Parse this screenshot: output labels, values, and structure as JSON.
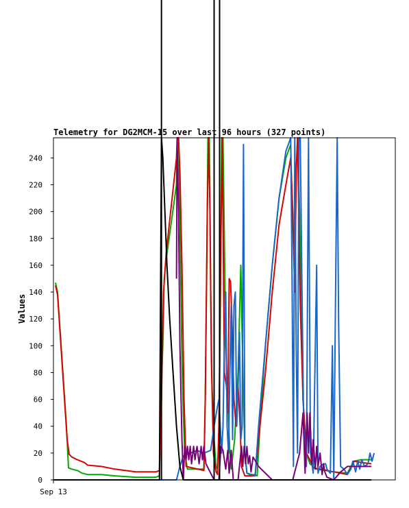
{
  "chart_data": {
    "type": "line",
    "title": "Telemetry for DG2MCM-15 over last 96 hours (327 points)",
    "xlabel": "",
    "ylabel": "Values",
    "x_tick_labels": [
      {
        "label": "Sep 13",
        "t": 0
      }
    ],
    "x_range": [
      0,
      1000
    ],
    "ylim": [
      0,
      255
    ],
    "y_ticks": [
      0,
      20,
      40,
      60,
      80,
      100,
      120,
      140,
      160,
      180,
      200,
      220,
      240
    ],
    "grid": false,
    "legend": "none",
    "series": [
      {
        "color": "#00aa00",
        "points": [
          [
            6,
            147
          ],
          [
            12,
            140
          ],
          [
            38,
            40
          ],
          [
            44,
            9
          ],
          [
            54,
            8
          ],
          [
            70,
            7
          ],
          [
            84,
            5
          ],
          [
            100,
            4
          ],
          [
            140,
            4
          ],
          [
            180,
            3
          ],
          [
            240,
            2
          ],
          [
            300,
            2
          ],
          [
            310,
            3
          ],
          [
            316,
            75
          ],
          [
            320,
            100
          ],
          [
            324,
            150
          ],
          [
            330,
            165
          ],
          [
            360,
            220
          ],
          [
            362,
            255
          ],
          [
            366,
            255
          ],
          [
            368,
            230
          ],
          [
            372,
            160
          ],
          [
            376,
            90
          ],
          [
            380,
            50
          ],
          [
            384,
            20
          ],
          [
            392,
            8
          ],
          [
            440,
            8
          ],
          [
            444,
            60
          ],
          [
            448,
            150
          ],
          [
            452,
            255
          ],
          [
            456,
            255
          ],
          [
            460,
            140
          ],
          [
            464,
            70
          ],
          [
            470,
            30
          ],
          [
            476,
            10
          ],
          [
            480,
            8
          ],
          [
            484,
            30
          ],
          [
            488,
            120
          ],
          [
            492,
            255
          ],
          [
            496,
            255
          ],
          [
            500,
            180
          ],
          [
            504,
            100
          ],
          [
            510,
            60
          ],
          [
            516,
            20
          ],
          [
            520,
            8
          ],
          [
            530,
            30
          ],
          [
            540,
            80
          ],
          [
            546,
            140
          ],
          [
            548,
            160
          ],
          [
            552,
            110
          ],
          [
            556,
            60
          ],
          [
            560,
            20
          ],
          [
            566,
            5
          ],
          [
            574,
            4
          ],
          [
            590,
            4
          ],
          [
            596,
            3
          ],
          [
            604,
            40
          ],
          [
            620,
            100
          ],
          [
            640,
            160
          ],
          [
            660,
            210
          ],
          [
            680,
            240
          ],
          [
            694,
            250
          ],
          [
            700,
            190
          ],
          [
            706,
            140
          ],
          [
            710,
            230
          ],
          [
            714,
            255
          ],
          [
            720,
            200
          ],
          [
            730,
            60
          ],
          [
            740,
            20
          ],
          [
            750,
            12
          ],
          [
            770,
            8
          ],
          [
            820,
            6
          ],
          [
            860,
            5
          ],
          [
            870,
            10
          ],
          [
            880,
            14
          ],
          [
            900,
            15
          ],
          [
            930,
            15
          ]
        ]
      },
      {
        "color": "#dd0000",
        "points": [
          [
            6,
            145
          ],
          [
            12,
            138
          ],
          [
            40,
            30
          ],
          [
            46,
            19
          ],
          [
            54,
            17
          ],
          [
            70,
            15
          ],
          [
            90,
            13
          ],
          [
            100,
            11
          ],
          [
            140,
            10
          ],
          [
            180,
            8
          ],
          [
            240,
            6
          ],
          [
            300,
            6
          ],
          [
            310,
            7
          ],
          [
            316,
            60
          ],
          [
            322,
            140
          ],
          [
            330,
            170
          ],
          [
            360,
            240
          ],
          [
            362,
            255
          ],
          [
            366,
            255
          ],
          [
            370,
            230
          ],
          [
            376,
            160
          ],
          [
            382,
            60
          ],
          [
            388,
            10
          ],
          [
            440,
            7
          ],
          [
            444,
            60
          ],
          [
            450,
            200
          ],
          [
            454,
            255
          ],
          [
            458,
            200
          ],
          [
            462,
            90
          ],
          [
            468,
            20
          ],
          [
            476,
            6
          ],
          [
            480,
            4
          ],
          [
            484,
            40
          ],
          [
            490,
            180
          ],
          [
            494,
            255
          ],
          [
            500,
            80
          ],
          [
            506,
            70
          ],
          [
            510,
            50
          ],
          [
            514,
            150
          ],
          [
            518,
            148
          ],
          [
            522,
            120
          ],
          [
            528,
            60
          ],
          [
            534,
            40
          ],
          [
            540,
            70
          ],
          [
            546,
            40
          ],
          [
            550,
            10
          ],
          [
            560,
            3
          ],
          [
            580,
            3
          ],
          [
            590,
            3
          ],
          [
            600,
            30
          ],
          [
            620,
            80
          ],
          [
            640,
            140
          ],
          [
            660,
            190
          ],
          [
            680,
            220
          ],
          [
            694,
            240
          ],
          [
            700,
            200
          ],
          [
            706,
            140
          ],
          [
            710,
            230
          ],
          [
            714,
            255
          ],
          [
            722,
            130
          ],
          [
            730,
            60
          ],
          [
            740,
            20
          ],
          [
            750,
            15
          ],
          [
            760,
            9
          ],
          [
            780,
            8
          ],
          [
            820,
            6
          ],
          [
            860,
            4
          ],
          [
            880,
            14
          ],
          [
            900,
            13
          ],
          [
            930,
            12
          ]
        ]
      },
      {
        "color": "#1a66c8",
        "points": [
          [
            310,
            0
          ],
          [
            320,
            0
          ],
          [
            360,
            0
          ],
          [
            370,
            10
          ],
          [
            380,
            18
          ],
          [
            400,
            20
          ],
          [
            420,
            22
          ],
          [
            440,
            20
          ],
          [
            460,
            22
          ],
          [
            470,
            40
          ],
          [
            480,
            55
          ],
          [
            484,
            60
          ],
          [
            488,
            40
          ],
          [
            492,
            20
          ],
          [
            496,
            40
          ],
          [
            500,
            100
          ],
          [
            504,
            140
          ],
          [
            508,
            40
          ],
          [
            512,
            20
          ],
          [
            516,
            80
          ],
          [
            520,
            130
          ],
          [
            524,
            30
          ],
          [
            528,
            130
          ],
          [
            532,
            140
          ],
          [
            536,
            40
          ],
          [
            540,
            70
          ],
          [
            544,
            110
          ],
          [
            548,
            30
          ],
          [
            552,
            40
          ],
          [
            556,
            250
          ],
          [
            560,
            20
          ],
          [
            566,
            5
          ],
          [
            580,
            4
          ],
          [
            590,
            3
          ],
          [
            600,
            40
          ],
          [
            620,
            100
          ],
          [
            640,
            160
          ],
          [
            660,
            210
          ],
          [
            680,
            245
          ],
          [
            694,
            255
          ],
          [
            698,
            150
          ],
          [
            702,
            10
          ],
          [
            706,
            255
          ],
          [
            710,
            100
          ],
          [
            714,
            20
          ],
          [
            718,
            255
          ],
          [
            722,
            255
          ],
          [
            728,
            120
          ],
          [
            732,
            40
          ],
          [
            740,
            10
          ],
          [
            746,
            255
          ],
          [
            752,
            20
          ],
          [
            760,
            5
          ],
          [
            770,
            160
          ],
          [
            774,
            5
          ],
          [
            780,
            10
          ],
          [
            790,
            12
          ],
          [
            796,
            12
          ],
          [
            800,
            8
          ],
          [
            810,
            5
          ],
          [
            816,
            100
          ],
          [
            820,
            0
          ],
          [
            826,
            160
          ],
          [
            830,
            255
          ],
          [
            834,
            120
          ],
          [
            840,
            10
          ],
          [
            850,
            8
          ],
          [
            860,
            4
          ],
          [
            870,
            8
          ],
          [
            876,
            14
          ],
          [
            884,
            6
          ],
          [
            890,
            14
          ],
          [
            896,
            8
          ],
          [
            902,
            15
          ],
          [
            910,
            10
          ],
          [
            920,
            12
          ],
          [
            926,
            20
          ],
          [
            932,
            14
          ],
          [
            938,
            20
          ]
        ]
      },
      {
        "color": "#770077",
        "points": [
          [
            360,
            150
          ],
          [
            362,
            255
          ],
          [
            366,
            200
          ],
          [
            370,
            100
          ],
          [
            376,
            30
          ],
          [
            380,
            0
          ],
          [
            384,
            25
          ],
          [
            388,
            15
          ],
          [
            392,
            25
          ],
          [
            396,
            15
          ],
          [
            400,
            25
          ],
          [
            404,
            12
          ],
          [
            410,
            25
          ],
          [
            414,
            15
          ],
          [
            420,
            25
          ],
          [
            426,
            12
          ],
          [
            432,
            25
          ],
          [
            436,
            15
          ],
          [
            440,
            25
          ],
          [
            446,
            12
          ],
          [
            450,
            10
          ],
          [
            460,
            5
          ],
          [
            470,
            0
          ],
          [
            484,
            0
          ],
          [
            490,
            25
          ],
          [
            496,
            22
          ],
          [
            500,
            15
          ],
          [
            504,
            8
          ],
          [
            510,
            22
          ],
          [
            514,
            5
          ],
          [
            520,
            22
          ],
          [
            526,
            0
          ],
          [
            540,
            0
          ],
          [
            546,
            15
          ],
          [
            550,
            25
          ],
          [
            554,
            10
          ],
          [
            558,
            25
          ],
          [
            562,
            12
          ],
          [
            566,
            25
          ],
          [
            570,
            12
          ],
          [
            574,
            18
          ],
          [
            578,
            6
          ],
          [
            584,
            17
          ],
          [
            600,
            10
          ],
          [
            620,
            5
          ],
          [
            640,
            0
          ],
          [
            700,
            0
          ],
          [
            710,
            10
          ],
          [
            720,
            20
          ],
          [
            730,
            50
          ],
          [
            736,
            5
          ],
          [
            742,
            50
          ],
          [
            746,
            20
          ],
          [
            750,
            50
          ],
          [
            756,
            12
          ],
          [
            760,
            30
          ],
          [
            766,
            8
          ],
          [
            770,
            25
          ],
          [
            774,
            10
          ],
          [
            780,
            20
          ],
          [
            786,
            4
          ],
          [
            790,
            12
          ],
          [
            794,
            6
          ],
          [
            800,
            2
          ],
          [
            820,
            0
          ],
          [
            840,
            6
          ],
          [
            860,
            10
          ],
          [
            880,
            10
          ],
          [
            900,
            10
          ],
          [
            930,
            10
          ]
        ]
      },
      {
        "color": "#000000",
        "points": [
          [
            0,
            0
          ],
          [
            300,
            0
          ],
          [
            310,
            0
          ],
          [
            316,
            255
          ],
          [
            320,
            240
          ],
          [
            326,
            200
          ],
          [
            332,
            160
          ],
          [
            340,
            120
          ],
          [
            350,
            80
          ],
          [
            360,
            40
          ],
          [
            370,
            10
          ],
          [
            380,
            0
          ],
          [
            440,
            0
          ],
          [
            450,
            0
          ],
          [
            460,
            0
          ],
          [
            470,
            0
          ],
          [
            480,
            0
          ],
          [
            500,
            0
          ],
          [
            560,
            0
          ],
          [
            700,
            0
          ],
          [
            800,
            0
          ],
          [
            930,
            0
          ]
        ]
      }
    ],
    "vertical_markers": [
      {
        "color": "#000000",
        "t": 316
      },
      {
        "color": "#000000",
        "t": 470
      },
      {
        "color": "#000000",
        "t": 486
      }
    ]
  }
}
